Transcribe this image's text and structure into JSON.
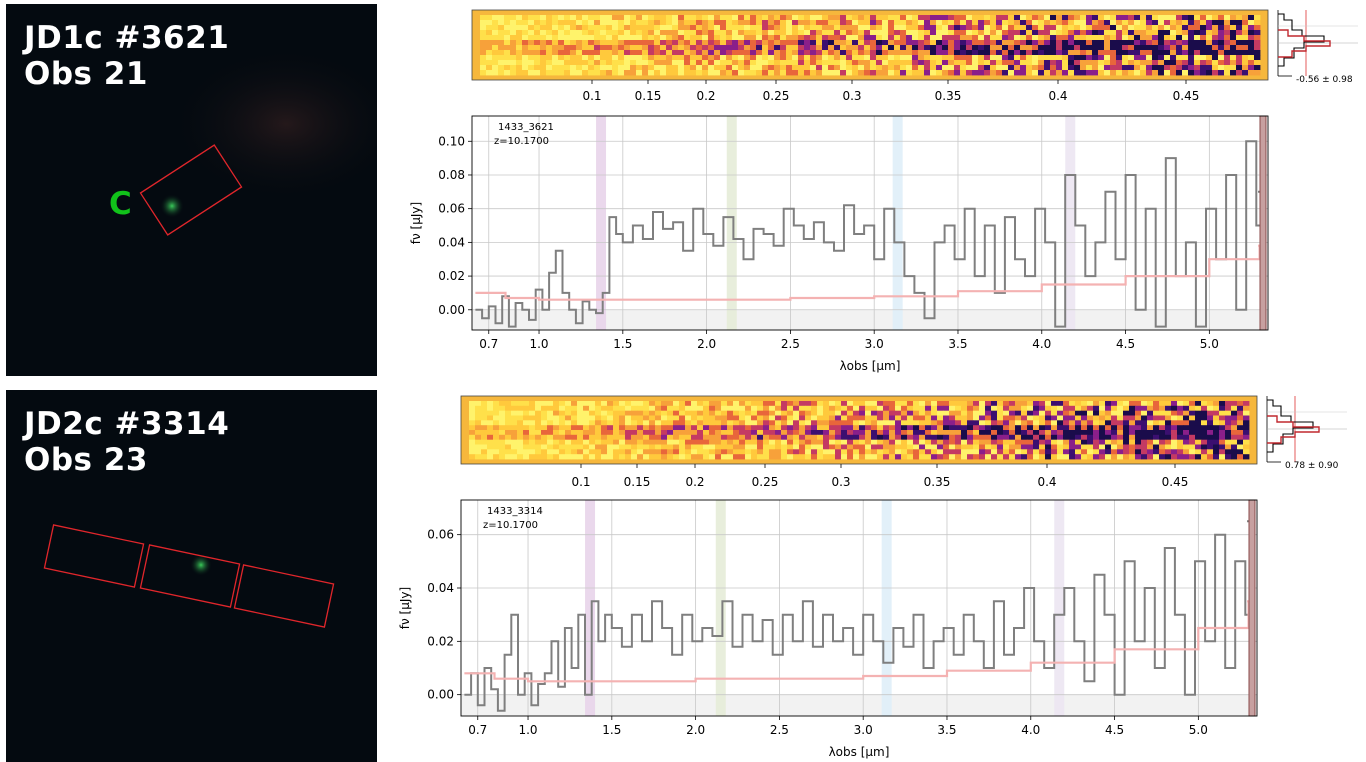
{
  "panels": [
    {
      "title_line1": "JD1c #3621",
      "title_line2": "Obs 21",
      "object_label": "C"
    },
    {
      "title_line1": "JD2c #3314",
      "title_line2": "Obs 23",
      "object_label": ""
    }
  ],
  "chart_data": [
    {
      "type": "line",
      "id": "1433_3621",
      "annotation_id": "1433_3621",
      "annotation_z": "z=10.1700",
      "xlabel": "λobs [μm]",
      "ylabel": "fν [μJy]",
      "xlim": [
        0.6,
        5.35
      ],
      "ylim": [
        -0.012,
        0.115
      ],
      "x_ticks": [
        "0.7",
        "1.0",
        "1.5",
        "2.0",
        "2.5",
        "3.0",
        "3.5",
        "4.0",
        "4.5",
        "5.0"
      ],
      "y_ticks": [
        "0.00",
        "0.02",
        "0.04",
        "0.06",
        "0.08",
        "0.10"
      ],
      "top_axis_ticks": [
        "0.1",
        "0.15",
        "0.2",
        "0.25",
        "0.3",
        "0.35",
        "0.4",
        "0.45"
      ],
      "profile_annotation": "-0.56 ± 0.98",
      "grid": true,
      "series": [
        {
          "color": "#7f7f7f",
          "x": [
            0.62,
            0.66,
            0.7,
            0.74,
            0.78,
            0.82,
            0.86,
            0.9,
            0.94,
            0.98,
            1.02,
            1.06,
            1.1,
            1.14,
            1.18,
            1.22,
            1.26,
            1.3,
            1.34,
            1.38,
            1.42,
            1.46,
            1.5,
            1.56,
            1.62,
            1.68,
            1.74,
            1.8,
            1.86,
            1.92,
            1.98,
            2.04,
            2.1,
            2.16,
            2.22,
            2.28,
            2.34,
            2.4,
            2.46,
            2.52,
            2.58,
            2.64,
            2.7,
            2.76,
            2.82,
            2.88,
            2.94,
            3.0,
            3.06,
            3.12,
            3.18,
            3.24,
            3.3,
            3.36,
            3.42,
            3.48,
            3.54,
            3.6,
            3.66,
            3.72,
            3.78,
            3.84,
            3.9,
            3.96,
            4.02,
            4.08,
            4.14,
            4.2,
            4.26,
            4.32,
            4.38,
            4.44,
            4.5,
            4.56,
            4.62,
            4.68,
            4.74,
            4.8,
            4.86,
            4.92,
            4.98,
            5.04,
            5.1,
            5.16,
            5.22,
            5.28,
            5.32
          ],
          "y": [
            0.0,
            -0.005,
            0.002,
            -0.008,
            0.008,
            -0.01,
            0.004,
            0.0,
            -0.006,
            0.012,
            0.0,
            0.022,
            0.035,
            0.01,
            0.0,
            -0.008,
            0.005,
            0.0,
            -0.002,
            0.01,
            0.055,
            0.045,
            0.04,
            0.05,
            0.042,
            0.058,
            0.048,
            0.052,
            0.035,
            0.06,
            0.045,
            0.038,
            0.055,
            0.042,
            0.03,
            0.048,
            0.045,
            0.038,
            0.06,
            0.05,
            0.042,
            0.052,
            0.04,
            0.035,
            0.062,
            0.045,
            0.05,
            0.03,
            0.06,
            0.04,
            0.02,
            0.01,
            -0.005,
            0.04,
            0.05,
            0.03,
            0.06,
            0.02,
            0.05,
            0.01,
            0.055,
            0.03,
            0.02,
            0.06,
            0.04,
            -0.01,
            0.08,
            0.05,
            0.02,
            0.04,
            0.07,
            0.03,
            0.08,
            0.0,
            0.06,
            -0.01,
            0.09,
            0.02,
            0.04,
            -0.01,
            0.06,
            0.03,
            0.08,
            0.0,
            0.1,
            0.05,
            0.07
          ]
        },
        {
          "color": "#f4b2b2",
          "x": [
            0.62,
            0.8,
            1.0,
            1.2,
            1.5,
            2.0,
            2.5,
            3.0,
            3.5,
            4.0,
            4.5,
            5.0,
            5.3
          ],
          "y": [
            0.01,
            0.007,
            0.006,
            0.006,
            0.006,
            0.006,
            0.007,
            0.008,
            0.011,
            0.015,
            0.02,
            0.03,
            0.038
          ]
        }
      ],
      "lines": [
        1.37,
        2.15,
        3.14,
        4.17
      ],
      "line_colors": [
        "#e8d4ea",
        "#e6ecd8",
        "#dfeef8",
        "#ece6f2"
      ]
    },
    {
      "type": "line",
      "id": "1433_3314",
      "annotation_id": "1433_3314",
      "annotation_z": "z=10.1700",
      "xlabel": "λobs [μm]",
      "ylabel": "fν [μJy]",
      "xlim": [
        0.6,
        5.35
      ],
      "ylim": [
        -0.008,
        0.073
      ],
      "x_ticks": [
        "0.7",
        "1.0",
        "1.5",
        "2.0",
        "2.5",
        "3.0",
        "3.5",
        "4.0",
        "4.5",
        "5.0"
      ],
      "y_ticks": [
        "0.00",
        "0.02",
        "0.04",
        "0.06"
      ],
      "top_axis_ticks": [
        "0.1",
        "0.15",
        "0.2",
        "0.25",
        "0.3",
        "0.35",
        "0.4",
        "0.45"
      ],
      "profile_annotation": "0.78 ± 0.90",
      "grid": true,
      "series": [
        {
          "color": "#7f7f7f",
          "x": [
            0.62,
            0.66,
            0.7,
            0.74,
            0.78,
            0.82,
            0.86,
            0.9,
            0.94,
            0.98,
            1.02,
            1.06,
            1.1,
            1.14,
            1.18,
            1.22,
            1.26,
            1.3,
            1.34,
            1.38,
            1.42,
            1.46,
            1.5,
            1.56,
            1.62,
            1.68,
            1.74,
            1.8,
            1.86,
            1.92,
            1.98,
            2.04,
            2.1,
            2.16,
            2.22,
            2.28,
            2.34,
            2.4,
            2.46,
            2.52,
            2.58,
            2.64,
            2.7,
            2.76,
            2.82,
            2.88,
            2.94,
            3.0,
            3.06,
            3.12,
            3.18,
            3.24,
            3.3,
            3.36,
            3.42,
            3.48,
            3.54,
            3.6,
            3.66,
            3.72,
            3.78,
            3.84,
            3.9,
            3.96,
            4.02,
            4.08,
            4.14,
            4.2,
            4.26,
            4.32,
            4.38,
            4.44,
            4.5,
            4.56,
            4.62,
            4.68,
            4.74,
            4.8,
            4.86,
            4.92,
            4.98,
            5.04,
            5.1,
            5.16,
            5.22,
            5.28,
            5.32
          ],
          "y": [
            0.0,
            0.008,
            -0.004,
            0.01,
            0.002,
            -0.006,
            0.015,
            0.03,
            0.0,
            0.008,
            -0.004,
            0.004,
            0.008,
            0.02,
            0.003,
            0.025,
            0.01,
            0.03,
            0.0,
            0.035,
            0.02,
            0.03,
            0.025,
            0.018,
            0.03,
            0.02,
            0.035,
            0.025,
            0.015,
            0.03,
            0.02,
            0.025,
            0.022,
            0.035,
            0.018,
            0.03,
            0.02,
            0.028,
            0.015,
            0.03,
            0.02,
            0.035,
            0.018,
            0.03,
            0.02,
            0.025,
            0.015,
            0.03,
            0.02,
            0.012,
            0.025,
            0.018,
            0.03,
            0.01,
            0.02,
            0.025,
            0.015,
            0.03,
            0.02,
            0.01,
            0.035,
            0.015,
            0.025,
            0.04,
            0.02,
            0.01,
            0.03,
            0.04,
            0.02,
            0.005,
            0.045,
            0.03,
            0.0,
            0.05,
            0.02,
            0.04,
            0.01,
            0.055,
            0.03,
            0.0,
            0.05,
            0.02,
            0.06,
            0.01,
            0.05,
            0.03,
            0.065
          ]
        },
        {
          "color": "#f4b2b2",
          "x": [
            0.62,
            0.8,
            1.0,
            1.2,
            1.5,
            2.0,
            2.5,
            3.0,
            3.5,
            4.0,
            4.5,
            5.0,
            5.3
          ],
          "y": [
            0.008,
            0.006,
            0.005,
            0.005,
            0.005,
            0.006,
            0.006,
            0.007,
            0.009,
            0.012,
            0.017,
            0.025,
            0.035
          ]
        }
      ],
      "lines": [
        1.37,
        2.15,
        3.14,
        4.17
      ],
      "line_colors": [
        "#e8d4ea",
        "#e6ecd8",
        "#dfeef8",
        "#ece6f2"
      ]
    }
  ]
}
